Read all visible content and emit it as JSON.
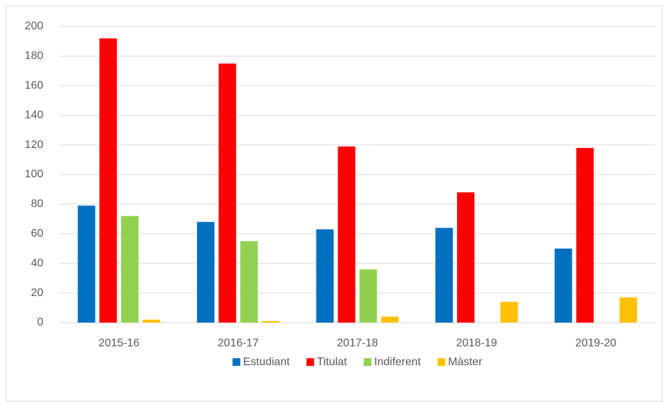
{
  "chart_data": {
    "type": "bar",
    "categories": [
      "2015-16",
      "2016-17",
      "2017-18",
      "2018-19",
      "2019-20"
    ],
    "series": [
      {
        "name": "Estudiant",
        "color": "#0070c0",
        "values": [
          79,
          68,
          63,
          64,
          50
        ]
      },
      {
        "name": "Titulat",
        "color": "#ff0000",
        "values": [
          192,
          175,
          119,
          88,
          118
        ]
      },
      {
        "name": "Indiferent",
        "color": "#92d050",
        "values": [
          72,
          55,
          36,
          0,
          0
        ]
      },
      {
        "name": "Màster",
        "color": "#ffc000",
        "values": [
          2,
          1,
          4,
          14,
          17
        ]
      }
    ],
    "ylim": [
      0,
      200
    ],
    "yticks": [
      0,
      20,
      40,
      60,
      80,
      100,
      120,
      140,
      160,
      180,
      200
    ],
    "grid": true,
    "legend": "bottom"
  }
}
